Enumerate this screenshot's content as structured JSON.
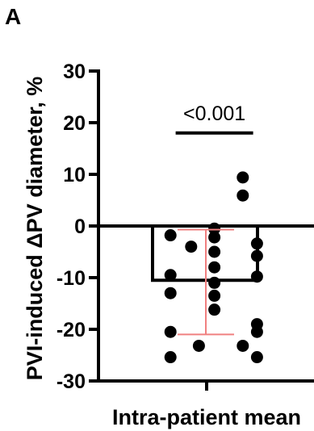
{
  "panel_label": "A",
  "chart_data": {
    "type": "bar",
    "ylabel": "PVI-induced ΔPV diameter, %",
    "xlabel": "",
    "categories": [
      "Intra-patient mean"
    ],
    "ylim": [
      -30,
      30
    ],
    "yticks": [
      30,
      20,
      10,
      0,
      -10,
      -20,
      -30
    ],
    "ytick_labels": [
      "30",
      "20",
      "10",
      "0",
      "-10",
      "-20",
      "-30"
    ],
    "grid": false,
    "bar": {
      "value": -10.5,
      "error_lower": -21.0,
      "error_upper": -0.7,
      "error_color": "#f08080"
    },
    "points": [
      {
        "x": 1.28,
        "y": 9.4
      },
      {
        "x": 1.28,
        "y": 5.9
      },
      {
        "x": 1.06,
        "y": -0.5
      },
      {
        "x": 0.72,
        "y": -1.8
      },
      {
        "x": 1.06,
        "y": -2.2
      },
      {
        "x": 1.39,
        "y": -3.4
      },
      {
        "x": 0.88,
        "y": -4.0
      },
      {
        "x": 1.06,
        "y": -5.0
      },
      {
        "x": 1.39,
        "y": -5.8
      },
      {
        "x": 1.06,
        "y": -8.0
      },
      {
        "x": 0.72,
        "y": -9.5
      },
      {
        "x": 1.39,
        "y": -9.8
      },
      {
        "x": 1.06,
        "y": -11.0
      },
      {
        "x": 0.72,
        "y": -13.0
      },
      {
        "x": 1.06,
        "y": -13.5
      },
      {
        "x": 1.06,
        "y": -16.2
      },
      {
        "x": 1.39,
        "y": -19.0
      },
      {
        "x": 0.72,
        "y": -20.5
      },
      {
        "x": 1.39,
        "y": -20.5
      },
      {
        "x": 0.94,
        "y": -23.2
      },
      {
        "x": 1.28,
        "y": -23.2
      },
      {
        "x": 0.72,
        "y": -25.4
      },
      {
        "x": 1.39,
        "y": -25.4
      }
    ],
    "annotation": {
      "text": "<0.001",
      "x_from": 0.76,
      "x_to": 1.36,
      "y": 18.0
    }
  }
}
